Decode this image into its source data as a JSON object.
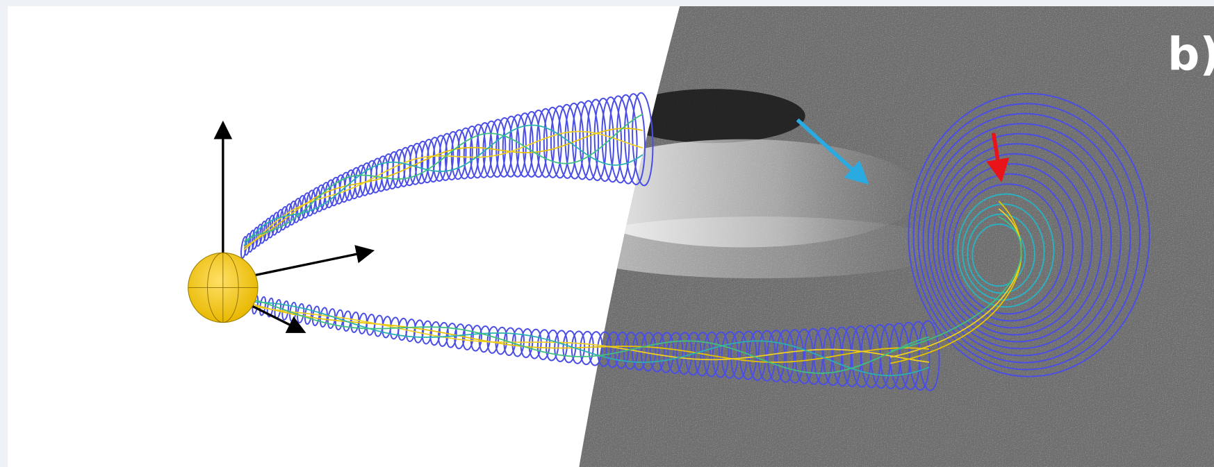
{
  "panel_label": "b)"
}
